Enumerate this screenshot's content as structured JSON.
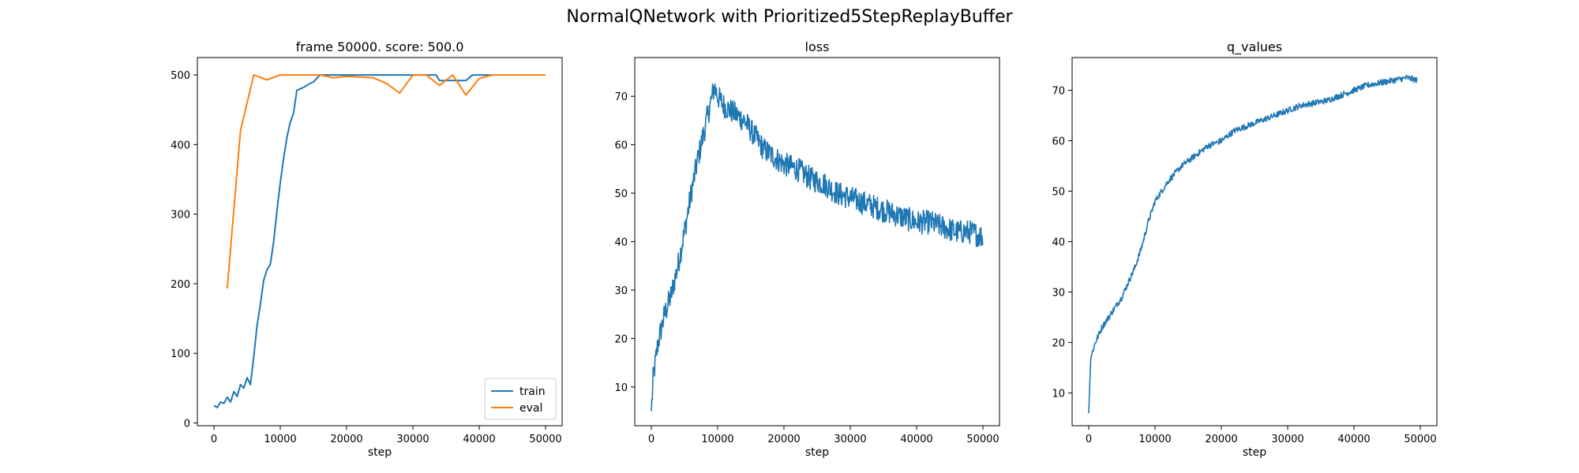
{
  "figure": {
    "suptitle": "NormalQNetwork with Prioritized5StepReplayBuffer"
  },
  "colors": {
    "train": "#1f77b4",
    "eval": "#ff7f0e",
    "axes": "#000000",
    "legend_border": "#cccccc"
  },
  "chart_data": [
    {
      "type": "line",
      "title": "frame 50000. score: 500.0",
      "xlabel": "step",
      "ylabel": "",
      "xlim": [
        -2500,
        52500
      ],
      "ylim": [
        -4,
        525
      ],
      "xticks": [
        0,
        10000,
        20000,
        30000,
        40000,
        50000
      ],
      "yticks": [
        0,
        100,
        200,
        300,
        400,
        500
      ],
      "grid": false,
      "legend": {
        "position": "bottom-right"
      },
      "series": [
        {
          "name": "train",
          "color": "#1f77b4",
          "x": [
            0,
            500,
            1000,
            1500,
            2000,
            2500,
            3000,
            3500,
            4000,
            4500,
            5000,
            5500,
            6000,
            6500,
            7000,
            7500,
            8000,
            8500,
            9000,
            9500,
            10000,
            10500,
            11000,
            11500,
            12000,
            12500,
            13000,
            13500,
            14000,
            14500,
            15000,
            15500,
            16000,
            17000,
            18000,
            20000,
            25000,
            30000,
            33500,
            34000,
            38000,
            39000,
            41000,
            42000
          ],
          "y": [
            25,
            22,
            30,
            28,
            37,
            30,
            45,
            38,
            55,
            50,
            65,
            55,
            95,
            140,
            170,
            205,
            220,
            228,
            260,
            305,
            345,
            380,
            410,
            432,
            445,
            478,
            480,
            482,
            485,
            488,
            490,
            495,
            500,
            500,
            500,
            500,
            500,
            500,
            500,
            492,
            492,
            500,
            500,
            500
          ]
        },
        {
          "name": "eval",
          "color": "#ff7f0e",
          "x": [
            2000,
            4000,
            6000,
            8000,
            10000,
            12000,
            14000,
            16000,
            18000,
            20000,
            22000,
            24000,
            26000,
            28000,
            30000,
            32000,
            34000,
            36000,
            38000,
            40000,
            42000,
            44000,
            46000,
            48000,
            50000
          ],
          "y": [
            193,
            420,
            500,
            493,
            500,
            500,
            500,
            500,
            496,
            498,
            497,
            496,
            488,
            474,
            500,
            500,
            485,
            500,
            471,
            495,
            500,
            500,
            500,
            500,
            500
          ]
        }
      ]
    },
    {
      "type": "line",
      "title": "loss",
      "xlabel": "step",
      "ylabel": "",
      "xlim": [
        -2500,
        52500
      ],
      "ylim": [
        2,
        78
      ],
      "xticks": [
        0,
        10000,
        20000,
        30000,
        40000,
        50000
      ],
      "yticks": [
        10,
        20,
        30,
        40,
        50,
        60,
        70
      ],
      "grid": false,
      "series": [
        {
          "color": "#1f77b4",
          "x": [
            0,
            300,
            1000,
            2000,
            3000,
            4000,
            5000,
            6000,
            7000,
            8000,
            9000,
            9500,
            10000,
            11000,
            12000,
            13000,
            14000,
            15000,
            16000,
            17000,
            18000,
            20000,
            22000,
            24000,
            26000,
            28000,
            30000,
            32000,
            34000,
            36000,
            38000,
            40000,
            42000,
            44000,
            46000,
            48000,
            50000
          ],
          "y": [
            5,
            12,
            19,
            25,
            29,
            35,
            42,
            50,
            57,
            63,
            69,
            72,
            70,
            68,
            67,
            66,
            65,
            63,
            61,
            59,
            58,
            56,
            55,
            53,
            52,
            50,
            49,
            48,
            47,
            46,
            45,
            44,
            44,
            43,
            42,
            42,
            41
          ],
          "noise": 2.5
        }
      ]
    },
    {
      "type": "line",
      "title": "q_values",
      "xlabel": "step",
      "ylabel": "",
      "xlim": [
        -2500,
        52500
      ],
      "ylim": [
        3.5,
        76.5
      ],
      "xticks": [
        0,
        10000,
        20000,
        30000,
        40000,
        50000
      ],
      "yticks": [
        10,
        20,
        30,
        40,
        50,
        60,
        70
      ],
      "grid": false,
      "series": [
        {
          "color": "#1f77b4",
          "x": [
            0,
            300,
            1000,
            2000,
            3000,
            4000,
            5000,
            6000,
            7000,
            8000,
            9000,
            10000,
            12000,
            14000,
            16000,
            18000,
            20000,
            22000,
            24000,
            26000,
            28000,
            30000,
            32000,
            34000,
            36000,
            38000,
            40000,
            42000,
            44000,
            46000,
            48000,
            49500
          ],
          "y": [
            6,
            17,
            20,
            23,
            25,
            27,
            29,
            32,
            35,
            39,
            44,
            48,
            52,
            55,
            57,
            59,
            60,
            62,
            63,
            64,
            65,
            66,
            67,
            67.5,
            68,
            69,
            70,
            71,
            71.5,
            72,
            72.5,
            72
          ],
          "noise": 0.6
        }
      ]
    }
  ]
}
